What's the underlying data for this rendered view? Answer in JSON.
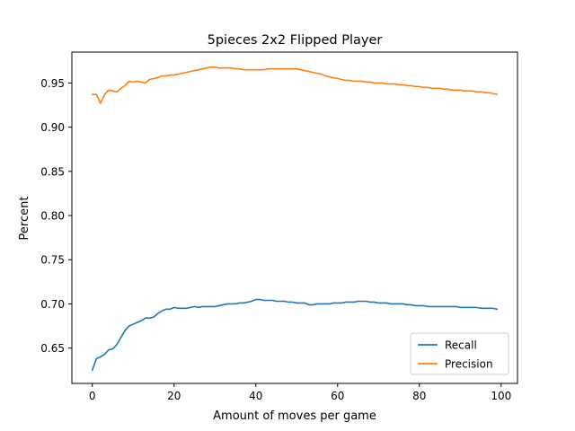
{
  "chart_data": {
    "type": "line",
    "title": "5pieces 2x2 Flipped Player",
    "xlabel": "Amount of moves per game",
    "ylabel": "Percent",
    "xlim": [
      -5,
      104
    ],
    "ylim": [
      0.61,
      0.985
    ],
    "xticks": [
      0,
      20,
      40,
      60,
      80,
      100
    ],
    "yticks": [
      0.65,
      0.7,
      0.75,
      0.8,
      0.85,
      0.9,
      0.95
    ],
    "ytick_labels": [
      "0.65",
      "0.70",
      "0.75",
      "0.80",
      "0.85",
      "0.90",
      "0.95"
    ],
    "grid": false,
    "legend_position": "lower-right",
    "series": [
      {
        "name": "Recall",
        "color": "#1f77b4",
        "x": [
          0,
          1,
          2,
          3,
          4,
          5,
          6,
          7,
          8,
          9,
          10,
          11,
          12,
          13,
          14,
          15,
          16,
          17,
          18,
          19,
          20,
          21,
          22,
          23,
          24,
          25,
          26,
          27,
          28,
          29,
          30,
          31,
          32,
          33,
          34,
          35,
          36,
          37,
          38,
          39,
          40,
          41,
          42,
          43,
          44,
          45,
          46,
          47,
          48,
          49,
          50,
          51,
          52,
          53,
          54,
          55,
          56,
          57,
          58,
          59,
          60,
          61,
          62,
          63,
          64,
          65,
          66,
          67,
          68,
          69,
          70,
          71,
          72,
          73,
          74,
          75,
          76,
          77,
          78,
          79,
          80,
          81,
          82,
          83,
          84,
          85,
          86,
          87,
          88,
          89,
          90,
          91,
          92,
          93,
          94,
          95,
          96,
          97,
          98,
          99
        ],
        "y": [
          0.625,
          0.638,
          0.64,
          0.643,
          0.648,
          0.649,
          0.654,
          0.662,
          0.67,
          0.675,
          0.677,
          0.679,
          0.681,
          0.684,
          0.684,
          0.685,
          0.689,
          0.692,
          0.694,
          0.694,
          0.696,
          0.695,
          0.695,
          0.695,
          0.696,
          0.697,
          0.696,
          0.697,
          0.697,
          0.697,
          0.697,
          0.698,
          0.699,
          0.7,
          0.7,
          0.7,
          0.701,
          0.701,
          0.702,
          0.703,
          0.705,
          0.705,
          0.704,
          0.704,
          0.704,
          0.703,
          0.703,
          0.703,
          0.702,
          0.702,
          0.701,
          0.701,
          0.701,
          0.699,
          0.699,
          0.7,
          0.7,
          0.7,
          0.7,
          0.701,
          0.701,
          0.701,
          0.702,
          0.702,
          0.702,
          0.703,
          0.703,
          0.703,
          0.702,
          0.702,
          0.701,
          0.701,
          0.701,
          0.7,
          0.7,
          0.7,
          0.7,
          0.699,
          0.699,
          0.698,
          0.698,
          0.698,
          0.697,
          0.697,
          0.697,
          0.697,
          0.697,
          0.697,
          0.697,
          0.697,
          0.696,
          0.696,
          0.696,
          0.696,
          0.696,
          0.695,
          0.695,
          0.695,
          0.695,
          0.694
        ]
      },
      {
        "name": "Precision",
        "color": "#ff7f0e",
        "x": [
          0,
          1,
          2,
          3,
          4,
          5,
          6,
          7,
          8,
          9,
          10,
          11,
          12,
          13,
          14,
          15,
          16,
          17,
          18,
          19,
          20,
          21,
          22,
          23,
          24,
          25,
          26,
          27,
          28,
          29,
          30,
          31,
          32,
          33,
          34,
          35,
          36,
          37,
          38,
          39,
          40,
          41,
          42,
          43,
          44,
          45,
          46,
          47,
          48,
          49,
          50,
          51,
          52,
          53,
          54,
          55,
          56,
          57,
          58,
          59,
          60,
          61,
          62,
          63,
          64,
          65,
          66,
          67,
          68,
          69,
          70,
          71,
          72,
          73,
          74,
          75,
          76,
          77,
          78,
          79,
          80,
          81,
          82,
          83,
          84,
          85,
          86,
          87,
          88,
          89,
          90,
          91,
          92,
          93,
          94,
          95,
          96,
          97,
          98,
          99
        ],
        "y": [
          0.937,
          0.937,
          0.927,
          0.937,
          0.942,
          0.941,
          0.94,
          0.944,
          0.947,
          0.952,
          0.951,
          0.952,
          0.951,
          0.95,
          0.954,
          0.955,
          0.956,
          0.958,
          0.958,
          0.959,
          0.959,
          0.96,
          0.961,
          0.962,
          0.963,
          0.964,
          0.965,
          0.966,
          0.967,
          0.968,
          0.968,
          0.967,
          0.967,
          0.967,
          0.967,
          0.966,
          0.966,
          0.965,
          0.965,
          0.965,
          0.965,
          0.965,
          0.965,
          0.966,
          0.966,
          0.966,
          0.966,
          0.966,
          0.966,
          0.966,
          0.966,
          0.965,
          0.964,
          0.963,
          0.962,
          0.961,
          0.96,
          0.958,
          0.957,
          0.956,
          0.955,
          0.954,
          0.953,
          0.953,
          0.952,
          0.952,
          0.952,
          0.951,
          0.951,
          0.95,
          0.95,
          0.95,
          0.949,
          0.949,
          0.949,
          0.948,
          0.948,
          0.947,
          0.947,
          0.946,
          0.946,
          0.945,
          0.945,
          0.944,
          0.944,
          0.944,
          0.943,
          0.943,
          0.942,
          0.942,
          0.942,
          0.941,
          0.941,
          0.941,
          0.94,
          0.94,
          0.939,
          0.939,
          0.938,
          0.937
        ]
      }
    ]
  }
}
